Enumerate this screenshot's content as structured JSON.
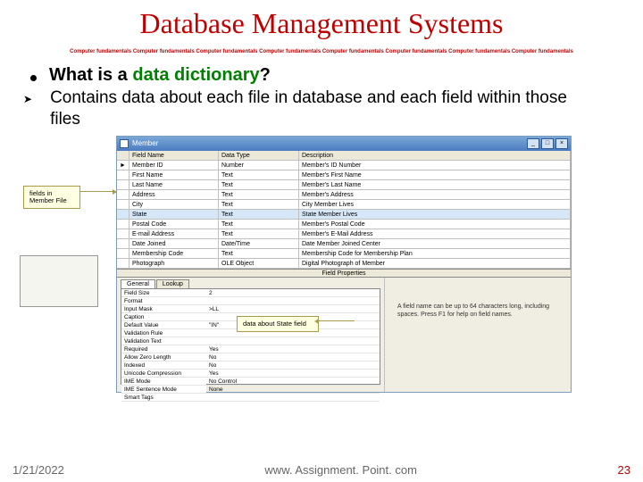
{
  "title": "Database Management Systems",
  "ribbon": "Computer fundamentals Computer fundamentals Computer fundamentals Computer fundamentals Computer fundamentals Computer fundamentals Computer fundamentals Computer fundamentals",
  "bullet": {
    "pre": "What is a ",
    "em": "data dictionary",
    "post": "?"
  },
  "subtext": "Contains data about each file in database and each field within those files",
  "window": {
    "title": "Member",
    "headers": {
      "name": "Field Name",
      "type": "Data Type",
      "desc": "Description"
    },
    "rows": [
      {
        "mark": "►",
        "name": "Member ID",
        "type": "Number",
        "desc": "Member's ID Number"
      },
      {
        "mark": "",
        "name": "First Name",
        "type": "Text",
        "desc": "Member's First Name"
      },
      {
        "mark": "",
        "name": "Last Name",
        "type": "Text",
        "desc": "Member's Last Name"
      },
      {
        "mark": "",
        "name": "Address",
        "type": "Text",
        "desc": "Member's Address"
      },
      {
        "mark": "",
        "name": "City",
        "type": "Text",
        "desc": "City Member Lives"
      },
      {
        "mark": "",
        "name": "State",
        "type": "Text",
        "desc": "State Member Lives",
        "sel": true
      },
      {
        "mark": "",
        "name": "Postal Code",
        "type": "Text",
        "desc": "Member's Postal Code"
      },
      {
        "mark": "",
        "name": "E-mail Address",
        "type": "Text",
        "desc": "Member's E-Mail Address"
      },
      {
        "mark": "",
        "name": "Date Joined",
        "type": "Date/Time",
        "desc": "Date Member Joined Center"
      },
      {
        "mark": "",
        "name": "Membership Code",
        "type": "Text",
        "desc": "Membership Code for Membership Plan"
      },
      {
        "mark": "",
        "name": "Photograph",
        "type": "OLE Object",
        "desc": "Digital Photograph of Member"
      }
    ],
    "fieldprops": "Field Properties",
    "tabs": {
      "general": "General",
      "lookup": "Lookup"
    },
    "props": [
      {
        "k": "Field Size",
        "v": "2"
      },
      {
        "k": "Format",
        "v": ""
      },
      {
        "k": "Input Mask",
        "v": ">LL"
      },
      {
        "k": "Caption",
        "v": ""
      },
      {
        "k": "Default Value",
        "v": "\"IN\""
      },
      {
        "k": "Validation Rule",
        "v": ""
      },
      {
        "k": "Validation Text",
        "v": ""
      },
      {
        "k": "Required",
        "v": "Yes"
      },
      {
        "k": "Allow Zero Length",
        "v": "No"
      },
      {
        "k": "Indexed",
        "v": "No"
      },
      {
        "k": "Unicode Compression",
        "v": "Yes"
      },
      {
        "k": "IME Mode",
        "v": "No Control"
      },
      {
        "k": "IME Sentence Mode",
        "v": "None"
      },
      {
        "k": "Smart Tags",
        "v": ""
      }
    ],
    "hint": "A field name can be up to 64 characters long, including spaces. Press F1 for help on field names."
  },
  "callouts": {
    "c1": "fields in Member File",
    "c2": "data about State field"
  },
  "footer": {
    "date": "1/21/2022",
    "url": "www. Assignment. Point. com",
    "page": "23"
  }
}
